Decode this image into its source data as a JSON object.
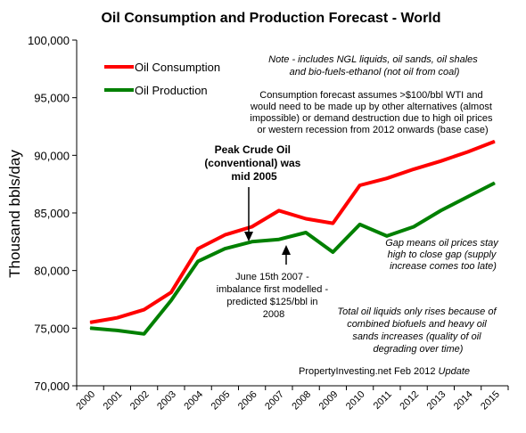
{
  "chart_data": {
    "type": "line",
    "title": "Oil Consumption and Production Forecast - World",
    "ylabel": "Thousand bbls/day",
    "xlabel": "",
    "ylim": [
      70000,
      100000
    ],
    "yticks": [
      "70,000",
      "75,000",
      "80,000",
      "85,000",
      "90,000",
      "95,000",
      "100,000"
    ],
    "x": [
      "2000",
      "2001",
      "2002",
      "2003",
      "2004",
      "2005",
      "2006",
      "2007",
      "2008",
      "2009",
      "2010",
      "2011",
      "2012",
      "2013",
      "2014",
      "2015"
    ],
    "grid": false,
    "legend_position": "top-left",
    "series": [
      {
        "name": "Oil Consumption",
        "color": "#ff0000",
        "values": [
          75500,
          75900,
          76600,
          78100,
          81900,
          83100,
          83800,
          85200,
          84500,
          84100,
          87400,
          88000,
          88800,
          89500,
          90300,
          91200
        ]
      },
      {
        "name": "Oil Production",
        "color": "#008000",
        "values": [
          75000,
          74800,
          74500,
          77400,
          80800,
          81900,
          82500,
          82700,
          83300,
          81600,
          84000,
          83000,
          83800,
          85200,
          86400,
          87600
        ]
      }
    ],
    "annotations": {
      "note": [
        "Note - includes NGL liquids, oil sands, oil shales",
        "and bio-fuels-ethanol  (not oil from coal)"
      ],
      "consumption_note": [
        "Consumption forecast assumes >$100/bbl WTI and",
        "would need to be made up by other alternatives (almost",
        "impossible) or demand destruction due to high oil prices",
        "or western recession from 2012 onwards (base case)"
      ],
      "peak": [
        "Peak Crude Oil",
        "(conventional) was",
        "mid 2005"
      ],
      "june": [
        "June 15th 2007 -",
        "imbalance first modelled -",
        "predicted $125/bbl in",
        "2008"
      ],
      "gap": [
        "Gap means oil prices stay",
        "high  to  close gap (supply",
        "increase comes too late)"
      ],
      "total": [
        "Total oil liquids only rises because of",
        "combined biofuels and heavy oil",
        "sands increases (quality of oil",
        "degrading over time)"
      ],
      "source": "PropertyInvesting.net  Feb 2012",
      "source_suffix": "Update"
    }
  }
}
